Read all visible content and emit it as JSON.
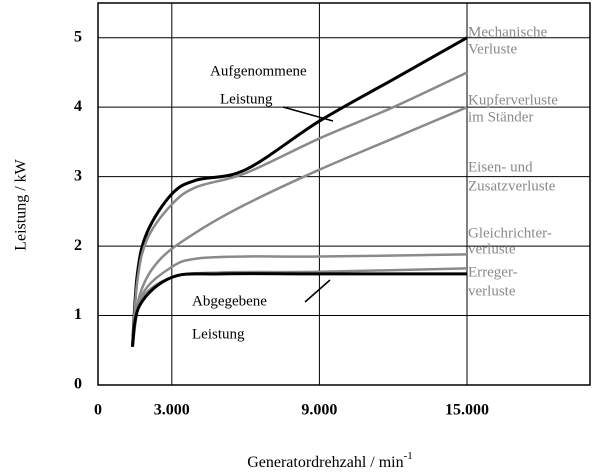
{
  "chart_data": {
    "type": "line",
    "xlabel": "Generatordrehzahl  / min",
    "xlabel_sup": "-1",
    "ylabel": "Leistung / kW",
    "xlim": [
      0,
      20000
    ],
    "ylim": [
      0,
      5.5
    ],
    "xticks": [
      0,
      {
        "value": 3000,
        "label": "3.000"
      },
      {
        "value": 9000,
        "label": "9.000"
      },
      {
        "value": 15000,
        "label": "15.000"
      }
    ],
    "yticks": [
      0,
      1,
      2,
      3,
      4,
      5
    ],
    "grid": true,
    "series": [
      {
        "color": "#000000",
        "x": [
          1400,
          1600,
          2000,
          3000,
          4000,
          6000,
          9000,
          12000,
          15000
        ],
        "values": [
          0.55,
          1.6,
          2.2,
          2.75,
          2.95,
          3.1,
          3.8,
          4.4,
          5.0
        ]
      },
      {
        "color": "#8a8a8a",
        "x": [
          1400,
          1600,
          2000,
          3000,
          4000,
          6000,
          9000,
          12000,
          15000
        ],
        "values": [
          0.55,
          1.5,
          2.1,
          2.6,
          2.85,
          3.05,
          3.55,
          4.0,
          4.5
        ]
      },
      {
        "color": "#8a8a8a",
        "x": [
          1400,
          1700,
          2500,
          4000,
          6000,
          9000,
          12000,
          15000
        ],
        "values": [
          0.55,
          1.3,
          1.8,
          2.2,
          2.6,
          3.1,
          3.55,
          4.0
        ]
      },
      {
        "color": "#8a8a8a",
        "x": [
          1400,
          1800,
          3000,
          4000,
          6000,
          9000,
          15000
        ],
        "values": [
          0.55,
          1.3,
          1.7,
          1.82,
          1.85,
          1.85,
          1.88
        ]
      },
      {
        "color": "#8a8a8a",
        "x": [
          1400,
          1700,
          3000,
          5000,
          9000,
          15000
        ],
        "values": [
          0.55,
          1.2,
          1.55,
          1.62,
          1.63,
          1.68
        ]
      },
      {
        "color": "#000000",
        "x": [
          1400,
          1700,
          3000,
          5000,
          9000,
          15000
        ],
        "values": [
          0.55,
          1.15,
          1.55,
          1.6,
          1.6,
          1.6
        ]
      }
    ],
    "annotations": [
      {
        "lines": [
          "Aufgenommene",
          "Leistung"
        ]
      },
      {
        "lines": [
          "Abgegebene",
          "Leistung"
        ]
      },
      {
        "lines": [
          "Mechanische",
          "Verluste"
        ]
      },
      {
        "lines": [
          "Kupferverluste",
          "im Ständer"
        ]
      },
      {
        "lines": [
          "Eisen- und",
          "Zusatzverluste"
        ]
      },
      {
        "lines": [
          "Gleichrichter-",
          "verluste"
        ]
      },
      {
        "lines": [
          "Erreger-",
          "verluste"
        ]
      }
    ]
  }
}
